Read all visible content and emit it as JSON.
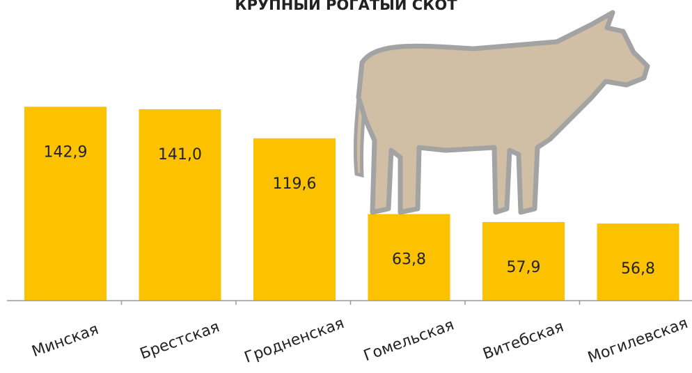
{
  "chart_data": {
    "type": "bar",
    "title": "КРУПНЫЙ РОГАТЫЙ СКОТ",
    "categories": [
      "Минская",
      "Брестская",
      "Гродненская",
      "Гомельская",
      "Витебская",
      "Могилевская"
    ],
    "values": [
      142.9,
      141.0,
      119.6,
      63.8,
      57.9,
      56.8
    ],
    "value_labels": [
      "142,9",
      "141,0",
      "119,6",
      "63,8",
      "57,9",
      "56,8"
    ],
    "color": "#fcc200"
  }
}
